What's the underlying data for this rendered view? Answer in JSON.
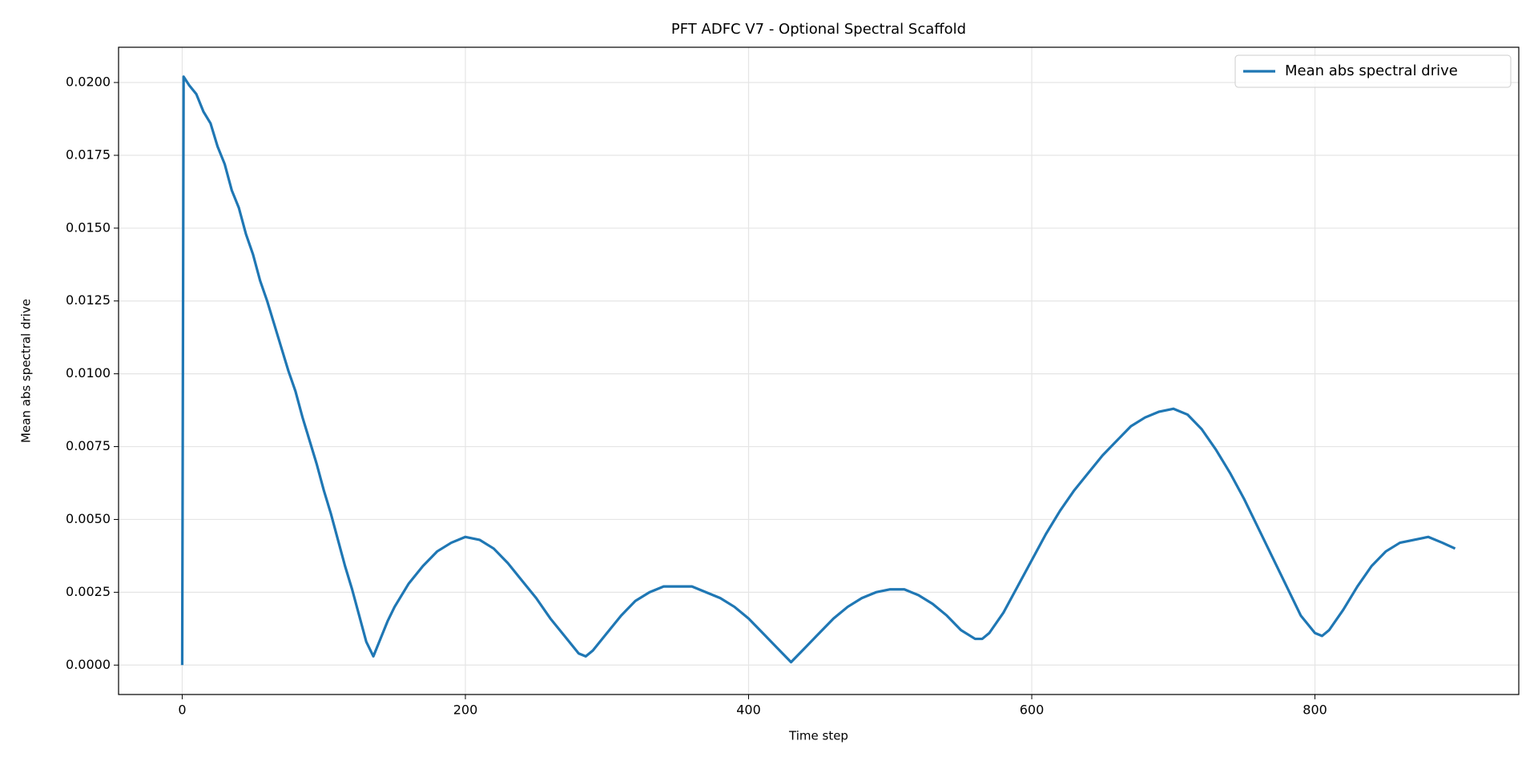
{
  "chart_data": {
    "type": "line",
    "title": "PFT ADFC V7 - Optional Spectral Scaffold",
    "xlabel": "Time step",
    "ylabel": "Mean abs spectral drive",
    "x": [
      0,
      1,
      5,
      10,
      15,
      20,
      25,
      30,
      35,
      40,
      45,
      50,
      55,
      60,
      65,
      70,
      75,
      80,
      85,
      90,
      95,
      100,
      105,
      110,
      115,
      120,
      125,
      130,
      135,
      140,
      145,
      150,
      160,
      170,
      180,
      190,
      200,
      210,
      220,
      230,
      240,
      250,
      260,
      270,
      280,
      285,
      290,
      300,
      310,
      320,
      330,
      340,
      350,
      360,
      370,
      380,
      390,
      400,
      410,
      420,
      430,
      440,
      450,
      460,
      470,
      480,
      490,
      500,
      510,
      520,
      530,
      540,
      550,
      560,
      565,
      570,
      580,
      590,
      600,
      610,
      620,
      630,
      640,
      650,
      660,
      670,
      680,
      690,
      700,
      710,
      720,
      730,
      740,
      750,
      760,
      770,
      780,
      790,
      800,
      805,
      810,
      820,
      830,
      840,
      850,
      860,
      870,
      880,
      890,
      899
    ],
    "series": [
      {
        "name": "Mean abs spectral drive",
        "color": "#1f77b4",
        "values": [
          0,
          0.0202,
          0.0199,
          0.0196,
          0.019,
          0.0186,
          0.0178,
          0.0172,
          0.0163,
          0.0157,
          0.0148,
          0.0141,
          0.0132,
          0.0125,
          0.0117,
          0.0109,
          0.0101,
          0.0094,
          0.0085,
          0.0077,
          0.0069,
          0.006,
          0.0052,
          0.0043,
          0.0034,
          0.0026,
          0.0017,
          0.0008,
          0.0003,
          0.0009,
          0.0015,
          0.002,
          0.0028,
          0.0034,
          0.0039,
          0.0042,
          0.0044,
          0.0043,
          0.004,
          0.0035,
          0.0029,
          0.0023,
          0.0016,
          0.001,
          0.0004,
          0.0003,
          0.0005,
          0.0011,
          0.0017,
          0.0022,
          0.0025,
          0.0027,
          0.0027,
          0.0027,
          0.0025,
          0.0023,
          0.002,
          0.0016,
          0.0011,
          0.0006,
          0.0001,
          0.0006,
          0.0011,
          0.0016,
          0.002,
          0.0023,
          0.0025,
          0.0026,
          0.0026,
          0.0024,
          0.0021,
          0.0017,
          0.0012,
          0.0009,
          0.0009,
          0.0011,
          0.0018,
          0.0027,
          0.0036,
          0.0045,
          0.0053,
          0.006,
          0.0066,
          0.0072,
          0.0077,
          0.0082,
          0.0085,
          0.0087,
          0.0088,
          0.0086,
          0.0081,
          0.0074,
          0.0066,
          0.0057,
          0.0047,
          0.0037,
          0.0027,
          0.0017,
          0.0011,
          0.001,
          0.0012,
          0.0019,
          0.0027,
          0.0034,
          0.0039,
          0.0042,
          0.0043,
          0.0044,
          0.0042,
          0.004
        ]
      }
    ],
    "xlim": [
      -44.95,
      943.95
    ],
    "ylim": [
      -0.00101,
      0.02121
    ],
    "xticks": [
      0,
      200,
      400,
      600,
      800
    ],
    "yticks": [
      {
        "value": 0,
        "label": "0.0000"
      },
      {
        "value": 0.0025,
        "label": "0.0025"
      },
      {
        "value": 0.005,
        "label": "0.0050"
      },
      {
        "value": 0.0075,
        "label": "0.0075"
      },
      {
        "value": 0.01,
        "label": "0.0100"
      },
      {
        "value": 0.0125,
        "label": "0.0125"
      },
      {
        "value": 0.015,
        "label": "0.0150"
      },
      {
        "value": 0.0175,
        "label": "0.0175"
      },
      {
        "value": 0.02,
        "label": "0.0200"
      }
    ],
    "grid": true,
    "legend": "upper right"
  }
}
